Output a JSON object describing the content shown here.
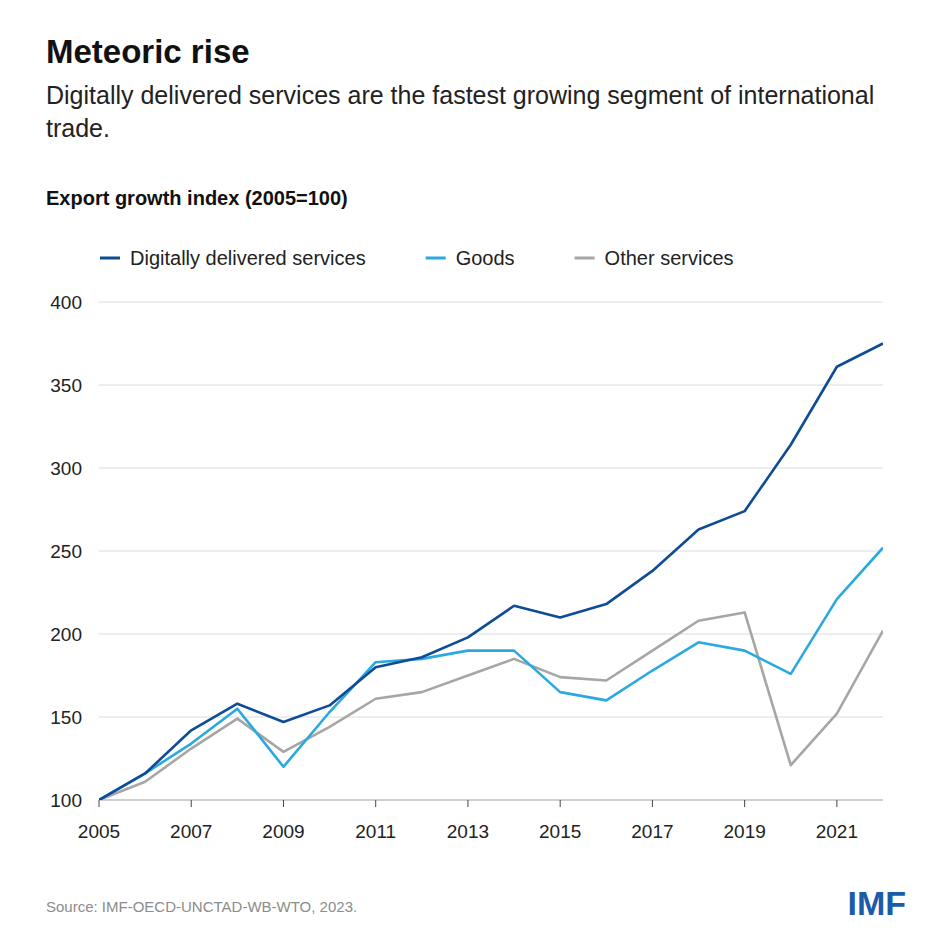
{
  "chart_data": {
    "type": "line",
    "title": "Meteoric rise",
    "subtitle": "Digitally delivered services are the fastest growing segment of international trade.",
    "y_label": "Export growth index (2005=100)",
    "source": "Source: IMF-OECD-UNCTAD-WB-WTO, 2023.",
    "logo": "IMF",
    "x": [
      2005,
      2006,
      2007,
      2008,
      2009,
      2010,
      2011,
      2012,
      2013,
      2014,
      2015,
      2016,
      2017,
      2018,
      2019,
      2020,
      2021,
      2022
    ],
    "series": [
      {
        "name": "Digitally delivered services",
        "color": "#0f4c97",
        "values": [
          100,
          116,
          142,
          158,
          147,
          157,
          180,
          186,
          198,
          217,
          210,
          218,
          238,
          263,
          274,
          314,
          361,
          375
        ]
      },
      {
        "name": "Goods",
        "color": "#2aa9e0",
        "values": [
          100,
          116,
          134,
          155,
          120,
          153,
          183,
          185,
          190,
          190,
          165,
          160,
          178,
          195,
          190,
          176,
          221,
          252
        ]
      },
      {
        "name": "Other services",
        "color": "#a6a6a6",
        "values": [
          100,
          111,
          131,
          149,
          129,
          144,
          161,
          165,
          175,
          185,
          174,
          172,
          190,
          208,
          213,
          121,
          152,
          202
        ]
      }
    ],
    "xlim": [
      2005,
      2022
    ],
    "xticks": [
      2005,
      2007,
      2009,
      2011,
      2013,
      2015,
      2017,
      2019,
      2021
    ],
    "ylim": [
      100,
      400
    ],
    "yticks": [
      100,
      150,
      200,
      250,
      300,
      350,
      400
    ],
    "grid": true,
    "legend": "top"
  }
}
